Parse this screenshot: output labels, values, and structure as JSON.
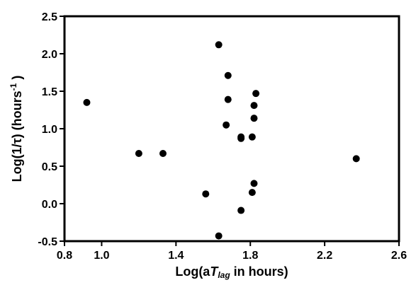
{
  "chart_data": {
    "type": "scatter",
    "title": "",
    "xlabel": "Log(aTlag in hours)",
    "ylabel": "Log(1/τ) (hours-1)",
    "xlabel_parts": {
      "prefix": "Log(a",
      "T": "T",
      "sub": "lag",
      "suffix": " in hours)"
    },
    "ylabel_parts": {
      "prefix": "Log(1/",
      "tau": "τ",
      "mid": ") (hours",
      "sup": "-1",
      "suffix": " )"
    },
    "xlim": [
      0.8,
      2.6
    ],
    "ylim": [
      -0.5,
      2.5
    ],
    "xticks": [
      "0.8",
      "1.0",
      "1.4",
      "1.8",
      "2.2",
      "2.6"
    ],
    "xtick_values": [
      0.8,
      1.0,
      1.4,
      1.8,
      2.2,
      2.6
    ],
    "yticks": [
      "2.5",
      "2.0",
      "1.5",
      "1.0",
      "0.5",
      "0.0",
      "-0.5"
    ],
    "ytick_values": [
      2.5,
      2.0,
      1.5,
      1.0,
      0.5,
      0.0,
      -0.5
    ],
    "grid": false,
    "points": [
      {
        "x": 0.92,
        "y": 1.35
      },
      {
        "x": 1.2,
        "y": 0.67
      },
      {
        "x": 1.33,
        "y": 0.67
      },
      {
        "x": 1.56,
        "y": 0.13
      },
      {
        "x": 1.63,
        "y": 2.12
      },
      {
        "x": 1.63,
        "y": -0.43
      },
      {
        "x": 1.67,
        "y": 1.05
      },
      {
        "x": 1.68,
        "y": 1.71
      },
      {
        "x": 1.68,
        "y": 1.39
      },
      {
        "x": 1.75,
        "y": 0.89
      },
      {
        "x": 1.75,
        "y": 0.87
      },
      {
        "x": 1.75,
        "y": -0.09
      },
      {
        "x": 1.81,
        "y": 0.89
      },
      {
        "x": 1.81,
        "y": 0.15
      },
      {
        "x": 1.82,
        "y": 1.31
      },
      {
        "x": 1.82,
        "y": 1.14
      },
      {
        "x": 1.82,
        "y": 0.27
      },
      {
        "x": 1.83,
        "y": 1.47
      },
      {
        "x": 2.37,
        "y": 0.6
      }
    ],
    "marker_color": "#000000"
  }
}
